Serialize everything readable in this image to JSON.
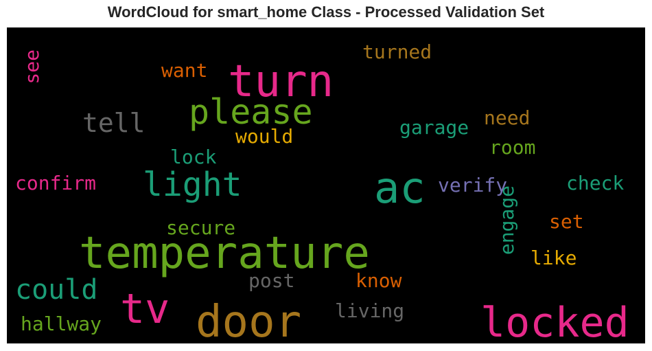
{
  "chart_data": {
    "type": "wordcloud",
    "title": "WordCloud for smart_home Class - Processed Validation Set",
    "background": "#000000",
    "words": [
      {
        "text": "turn",
        "color": "#e7298a"
      },
      {
        "text": "please",
        "color": "#66a61e"
      },
      {
        "text": "ac",
        "color": "#1b9e77"
      },
      {
        "text": "temperature",
        "color": "#66a61e"
      },
      {
        "text": "door",
        "color": "#a6761d"
      },
      {
        "text": "locked",
        "color": "#e7298a"
      },
      {
        "text": "tv",
        "color": "#e7298a"
      },
      {
        "text": "light",
        "color": "#1b9e77"
      },
      {
        "text": "could",
        "color": "#1b9e77"
      },
      {
        "text": "tell",
        "color": "#666666"
      },
      {
        "text": "see",
        "color": "#e7298a"
      },
      {
        "text": "turned",
        "color": "#a6761d"
      },
      {
        "text": "want",
        "color": "#d95f02"
      },
      {
        "text": "garage",
        "color": "#1b9e77"
      },
      {
        "text": "need",
        "color": "#a6761d"
      },
      {
        "text": "would",
        "color": "#e6ab02"
      },
      {
        "text": "room",
        "color": "#66a61e"
      },
      {
        "text": "lock",
        "color": "#1b9e77"
      },
      {
        "text": "confirm",
        "color": "#e7298a"
      },
      {
        "text": "verify",
        "color": "#7570b3"
      },
      {
        "text": "check",
        "color": "#1b9e77"
      },
      {
        "text": "secure",
        "color": "#66a61e"
      },
      {
        "text": "set",
        "color": "#d95f02"
      },
      {
        "text": "engage",
        "color": "#1b9e77"
      },
      {
        "text": "like",
        "color": "#e6ab02"
      },
      {
        "text": "post",
        "color": "#666666"
      },
      {
        "text": "know",
        "color": "#d95f02"
      },
      {
        "text": "living",
        "color": "#666666"
      },
      {
        "text": "hallway",
        "color": "#66a61e"
      }
    ]
  }
}
